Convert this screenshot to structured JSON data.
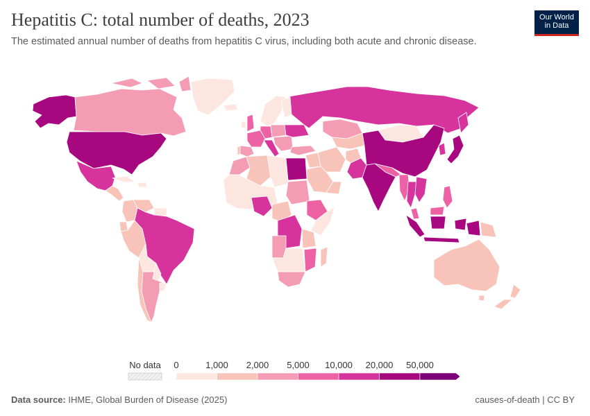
{
  "title": "Hepatitis C: total number of deaths, 2023",
  "subtitle": "The estimated annual number of deaths from hepatitis C virus, including both acute and chronic disease.",
  "logo": {
    "line1": "Our World",
    "line2": "in Data"
  },
  "footer": {
    "source_label": "Data source:",
    "source_text": " IHME, Global Burden of Disease (2025)",
    "right": "causes-of-death | CC BY"
  },
  "legend": {
    "no_data_label": "No data",
    "ticks": [
      "0",
      "1,000",
      "2,000",
      "5,000",
      "10,000",
      "20,000",
      "50,000"
    ],
    "colors": [
      "#fde6df",
      "#f8c3b8",
      "#f49cb4",
      "#ec62a4",
      "#d6339c",
      "#a7077f",
      "#7a0177"
    ]
  },
  "colors": {
    "ocean": "#ffffff",
    "border": "#ffffff",
    "no_data": "#eeeeee"
  },
  "chart_data": {
    "type": "choropleth",
    "bins": [
      "0–1,000",
      "1,000–2,000",
      "2,000–5,000",
      "5,000–10,000",
      "10,000–20,000",
      "20,000–50,000",
      ">50,000"
    ],
    "regions": [
      {
        "name": "Canada",
        "bin": 2
      },
      {
        "name": "Alaska (US)",
        "bin": 5
      },
      {
        "name": "Greenland",
        "bin": 0
      },
      {
        "name": "United States",
        "bin": 5
      },
      {
        "name": "Mexico",
        "bin": 4
      },
      {
        "name": "Central America",
        "bin": 1
      },
      {
        "name": "Cuba / Caribbean",
        "bin": 0
      },
      {
        "name": "Colombia",
        "bin": 1
      },
      {
        "name": "Venezuela",
        "bin": 1
      },
      {
        "name": "Guianas",
        "bin": 0
      },
      {
        "name": "Peru",
        "bin": 1
      },
      {
        "name": "Ecuador",
        "bin": 1
      },
      {
        "name": "Brazil",
        "bin": 4
      },
      {
        "name": "Bolivia",
        "bin": 0
      },
      {
        "name": "Paraguay",
        "bin": 0
      },
      {
        "name": "Argentina",
        "bin": 2
      },
      {
        "name": "Chile",
        "bin": 1
      },
      {
        "name": "Uruguay",
        "bin": 0
      },
      {
        "name": "Iceland",
        "bin": 0
      },
      {
        "name": "United Kingdom",
        "bin": 3
      },
      {
        "name": "Ireland",
        "bin": 0
      },
      {
        "name": "Scandinavia",
        "bin": 0
      },
      {
        "name": "Finland",
        "bin": 0
      },
      {
        "name": "France",
        "bin": 3
      },
      {
        "name": "Spain",
        "bin": 2
      },
      {
        "name": "Portugal",
        "bin": 1
      },
      {
        "name": "Germany",
        "bin": 3
      },
      {
        "name": "Poland",
        "bin": 2
      },
      {
        "name": "Italy",
        "bin": 4
      },
      {
        "name": "Ukraine",
        "bin": 4
      },
      {
        "name": "Balkans",
        "bin": 2
      },
      {
        "name": "Russia",
        "bin": 4
      },
      {
        "name": "Kazakhstan",
        "bin": 2
      },
      {
        "name": "Central Asia",
        "bin": 1
      },
      {
        "name": "Turkey",
        "bin": 2
      },
      {
        "name": "Iran",
        "bin": 1
      },
      {
        "name": "Iraq / Syria",
        "bin": 1
      },
      {
        "name": "Saudi Arabia",
        "bin": 1
      },
      {
        "name": "Yemen / Oman",
        "bin": 1
      },
      {
        "name": "Afghanistan",
        "bin": 1
      },
      {
        "name": "Pakistan",
        "bin": 4
      },
      {
        "name": "India",
        "bin": 5
      },
      {
        "name": "Nepal / Bangladesh",
        "bin": 3
      },
      {
        "name": "Mongolia",
        "bin": 0
      },
      {
        "name": "China",
        "bin": 5
      },
      {
        "name": "Korea",
        "bin": 4
      },
      {
        "name": "Japan",
        "bin": 5
      },
      {
        "name": "Myanmar",
        "bin": 3
      },
      {
        "name": "Thailand",
        "bin": 4
      },
      {
        "name": "Vietnam / Cambodia",
        "bin": 4
      },
      {
        "name": "Philippines",
        "bin": 3
      },
      {
        "name": "Malaysia",
        "bin": 3
      },
      {
        "name": "Indonesia",
        "bin": 5
      },
      {
        "name": "Papua New Guinea",
        "bin": 1
      },
      {
        "name": "Australia",
        "bin": 1
      },
      {
        "name": "New Zealand",
        "bin": 1
      },
      {
        "name": "Morocco",
        "bin": 2
      },
      {
        "name": "Algeria",
        "bin": 1
      },
      {
        "name": "Libya",
        "bin": 0
      },
      {
        "name": "Egypt",
        "bin": 5
      },
      {
        "name": "Sudan",
        "bin": 2
      },
      {
        "name": "West Africa",
        "bin": 0
      },
      {
        "name": "Nigeria",
        "bin": 4
      },
      {
        "name": "Central Africa",
        "bin": 1
      },
      {
        "name": "Ethiopia",
        "bin": 3
      },
      {
        "name": "Somalia / Kenya",
        "bin": 0
      },
      {
        "name": "DR Congo",
        "bin": 4
      },
      {
        "name": "Tanzania",
        "bin": 1
      },
      {
        "name": "Angola",
        "bin": 2
      },
      {
        "name": "Mozambique",
        "bin": 3
      },
      {
        "name": "Southern Africa",
        "bin": 0
      },
      {
        "name": "South Africa",
        "bin": 2
      },
      {
        "name": "Madagascar",
        "bin": 1
      }
    ]
  }
}
